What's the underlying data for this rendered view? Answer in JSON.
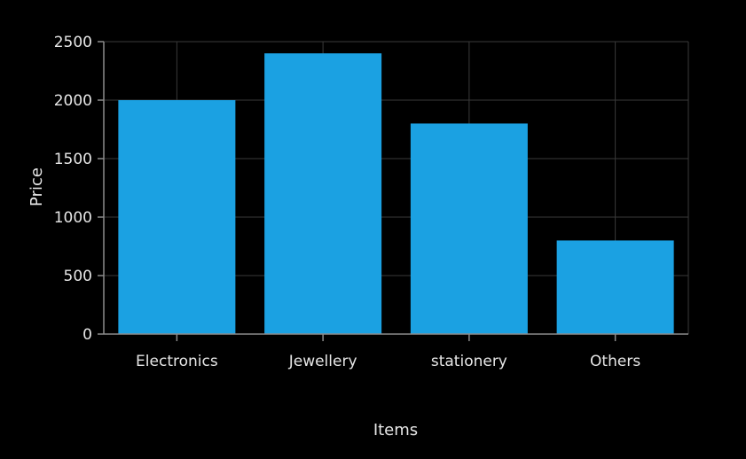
{
  "chart_data": {
    "type": "bar",
    "categories": [
      "Electronics",
      "Jewellery",
      "stationery",
      "Others"
    ],
    "values": [
      2000,
      2400,
      1800,
      800
    ],
    "xlabel": "Items",
    "ylabel": "Price",
    "ylim": [
      0,
      2500
    ],
    "yticks": [
      0,
      500,
      1000,
      1500,
      2000,
      2500
    ],
    "grid": true,
    "bar_color": "#1ba1e2",
    "background_color": "#000000",
    "gridline_color": "#3a3a3a",
    "axis_color": "#8c8c8c",
    "text_color": "#e6e6e6"
  }
}
